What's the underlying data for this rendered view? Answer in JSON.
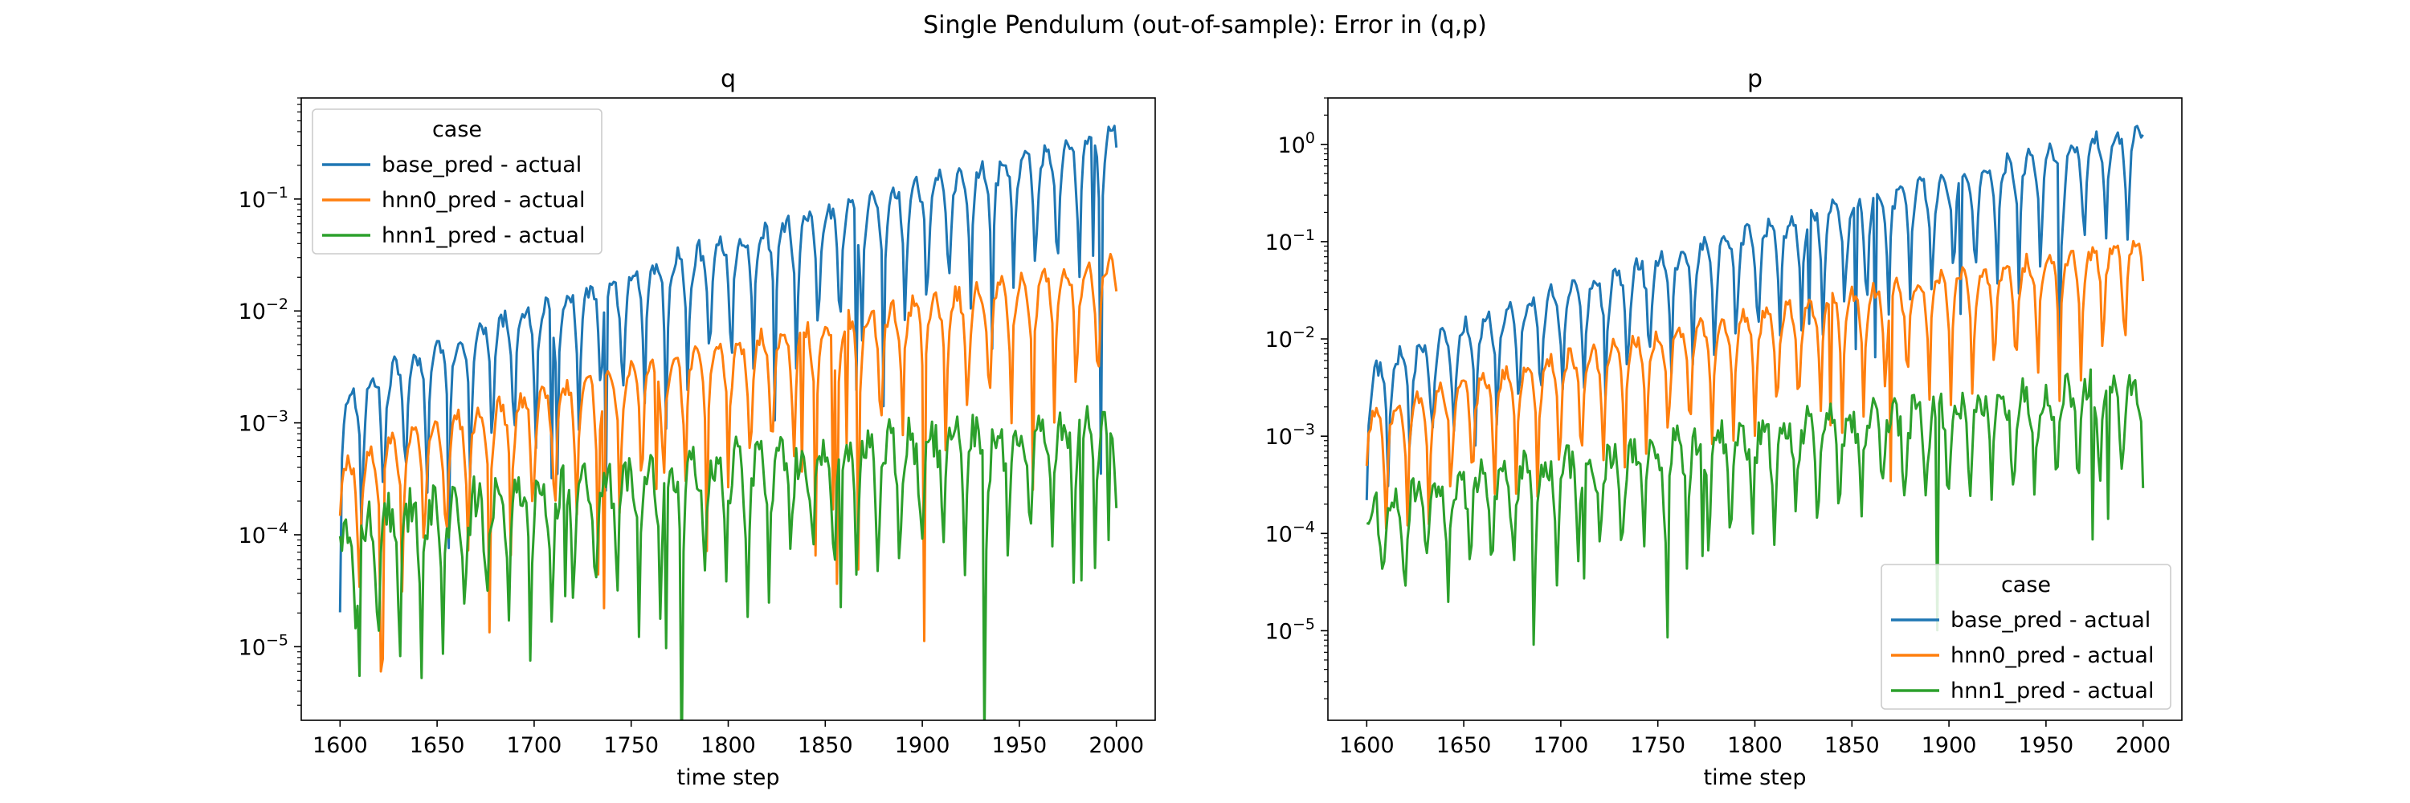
{
  "figure": {
    "suptitle": "Single Pendulum (out-of-sample): Error in (q,p)"
  },
  "chart_data": [
    {
      "type": "line",
      "title": "q",
      "xlabel": "time step",
      "ylabel": "",
      "yscale": "log",
      "xlim": [
        1580,
        2020
      ],
      "ylim": [
        2.2e-06,
        0.8
      ],
      "xticks": [
        1600,
        1650,
        1700,
        1750,
        1800,
        1850,
        1900,
        1950,
        2000
      ],
      "yticks": [
        {
          "value": 1e-05,
          "exp": "−5"
        },
        {
          "value": 0.0001,
          "exp": "−4"
        },
        {
          "value": 0.001,
          "exp": "−3"
        },
        {
          "value": 0.01,
          "exp": "−2"
        },
        {
          "value": 0.1,
          "exp": "−1"
        }
      ],
      "legend": {
        "title": "case",
        "loc": "upper left"
      },
      "series": [
        {
          "name": "base_pred - actual",
          "color": "#1f77b4",
          "start_amp": 0.0015,
          "end_amp": 0.42,
          "floor_ratio": 0.02,
          "noise": 0.2,
          "seed": 11
        },
        {
          "name": "hnn0_pred - actual",
          "color": "#ff7f0e",
          "start_amp": 0.0004,
          "end_amp": 0.028,
          "floor_ratio": 0.015,
          "noise": 0.2,
          "seed": 23
        },
        {
          "name": "hnn1_pred - actual",
          "color": "#2ca02c",
          "start_amp": 0.00012,
          "end_amp": 0.0012,
          "floor_ratio": 0.05,
          "noise": 0.45,
          "seed": 37
        }
      ]
    },
    {
      "type": "line",
      "title": "p",
      "xlabel": "time step",
      "ylabel": "",
      "yscale": "log",
      "xlim": [
        1580,
        2020
      ],
      "ylim": [
        1.2e-06,
        3.0
      ],
      "xticks": [
        1600,
        1650,
        1700,
        1750,
        1800,
        1850,
        1900,
        1950,
        2000
      ],
      "yticks": [
        {
          "value": 1e-05,
          "exp": "−5"
        },
        {
          "value": 0.0001,
          "exp": "−4"
        },
        {
          "value": 0.001,
          "exp": "−3"
        },
        {
          "value": 0.01,
          "exp": "−2"
        },
        {
          "value": 0.1,
          "exp": "−1"
        },
        {
          "value": 1,
          "exp": "0"
        }
      ],
      "legend": {
        "title": "case",
        "loc": "lower right"
      },
      "series": [
        {
          "name": "base_pred - actual",
          "color": "#1f77b4",
          "start_amp": 0.004,
          "end_amp": 1.5,
          "floor_ratio": 0.06,
          "noise": 0.2,
          "seed": 41
        },
        {
          "name": "hnn0_pred - actual",
          "color": "#ff7f0e",
          "start_amp": 0.0015,
          "end_amp": 0.1,
          "floor_ratio": 0.04,
          "noise": 0.2,
          "seed": 53
        },
        {
          "name": "hnn1_pred - actual",
          "color": "#2ca02c",
          "start_amp": 0.0002,
          "end_amp": 0.004,
          "floor_ratio": 0.1,
          "noise": 0.4,
          "seed": 67
        }
      ]
    }
  ]
}
